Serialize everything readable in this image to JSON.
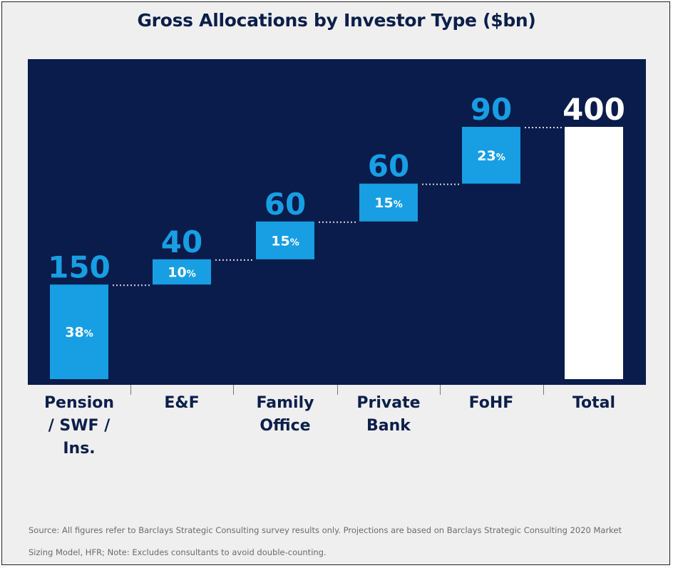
{
  "chart_data": {
    "type": "bar",
    "subtype": "waterfall",
    "title": "Gross Allocations by Investor Type ($bn)",
    "categories": [
      "Pension / SWF / Ins.",
      "E&F",
      "Family Office",
      "Private Bank",
      "FoHF",
      "Total"
    ],
    "values": [
      150,
      40,
      60,
      60,
      90,
      400
    ],
    "value_labels": [
      "150",
      "40",
      "60",
      "60",
      "90",
      "400"
    ],
    "percent_labels": [
      "38%",
      "10%",
      "15%",
      "15%",
      "23%",
      ""
    ],
    "ylim": [
      0,
      400
    ],
    "grid": false,
    "colors": {
      "bar": "#189ee3",
      "total_bar": "#ffffff",
      "plot_background": "#0a1c4b",
      "value_text": "#189ee3",
      "total_text": "#ffffff",
      "connector": "#cfd8e6"
    }
  },
  "source": "Source: All figures refer to Barclays Strategic Consulting survey results only. Projections are based on Barclays Strategic Consulting 2020 Market Sizing Model, HFR; Note: Excludes consultants to avoid double-counting."
}
